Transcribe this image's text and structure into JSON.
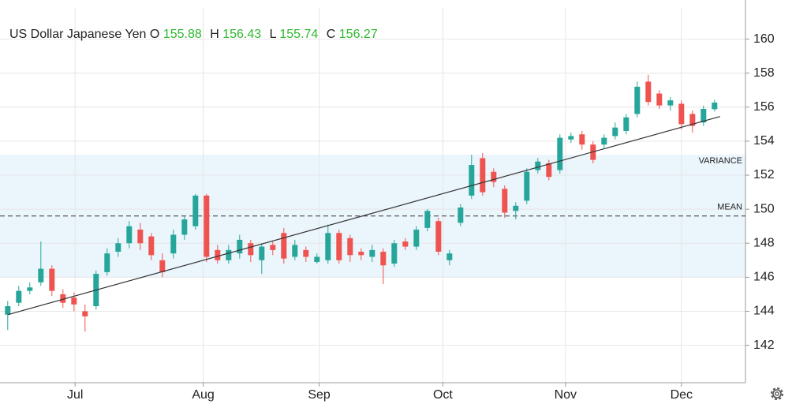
{
  "chart_data": {
    "type": "candlestick",
    "title": "US Dollar Japanese Yen",
    "ohlc_legend": [
      {
        "label": "O",
        "value": 155.88
      },
      {
        "label": "H",
        "value": 156.43
      },
      {
        "label": "L",
        "value": 155.74
      },
      {
        "label": "C",
        "value": 156.27
      }
    ],
    "x": [
      0,
      1,
      2,
      3,
      4,
      5,
      6,
      7,
      8,
      9,
      10,
      11,
      12,
      13,
      14,
      15,
      16,
      17,
      18,
      19,
      20,
      21,
      22,
      23,
      24,
      25,
      26,
      27,
      28,
      29,
      30,
      31,
      32,
      33,
      34,
      35,
      36,
      37,
      38,
      39,
      40,
      41,
      42,
      43,
      44,
      45,
      46,
      47,
      48,
      49,
      50,
      51,
      52,
      53,
      54,
      55,
      56,
      57,
      58,
      59,
      60,
      61,
      62,
      63,
      64
    ],
    "open": [
      143.8,
      144.5,
      145.2,
      145.7,
      146.5,
      145.0,
      144.8,
      144.0,
      144.3,
      146.3,
      147.5,
      148.0,
      148.8,
      148.4,
      147.0,
      147.4,
      148.5,
      149.0,
      150.8,
      147.6,
      147.0,
      147.4,
      148.0,
      147.0,
      147.9,
      148.6,
      147.2,
      147.6,
      146.9,
      147.0,
      148.6,
      148.3,
      147.5,
      147.2,
      147.5,
      146.8,
      148.1,
      147.8,
      148.9,
      149.3,
      147.0,
      149.2,
      150.8,
      153.0,
      152.2,
      151.2,
      149.9,
      150.5,
      152.3,
      152.7,
      152.3,
      154.1,
      154.4,
      153.8,
      153.8,
      154.3,
      154.6,
      155.6,
      157.5,
      156.8,
      156.1,
      156.2,
      155.6,
      155.1,
      155.88
    ],
    "high": [
      144.6,
      145.5,
      145.7,
      148.1,
      146.7,
      145.3,
      145.1,
      144.4,
      146.4,
      147.7,
      148.3,
      149.3,
      149.2,
      148.6,
      147.4,
      148.8,
      149.6,
      150.9,
      150.9,
      147.9,
      147.9,
      148.5,
      148.2,
      148.0,
      148.1,
      148.9,
      148.2,
      147.8,
      147.4,
      149.1,
      148.8,
      148.5,
      147.7,
      147.9,
      147.7,
      148.2,
      148.3,
      149.0,
      150.0,
      149.5,
      147.6,
      150.3,
      153.2,
      153.3,
      152.4,
      151.4,
      150.4,
      152.4,
      153.0,
      152.9,
      154.4,
      154.5,
      154.6,
      154.0,
      154.4,
      155.1,
      155.6,
      157.5,
      157.9,
      157.0,
      156.6,
      156.4,
      155.8,
      156.1,
      156.43
    ],
    "low": [
      142.9,
      144.3,
      145.0,
      145.5,
      144.9,
      144.2,
      144.0,
      142.8,
      144.1,
      146.1,
      147.2,
      147.7,
      147.6,
      147.0,
      146.0,
      147.1,
      148.2,
      148.8,
      146.9,
      146.8,
      146.8,
      147.1,
      146.9,
      146.2,
      147.3,
      146.8,
      147.0,
      146.9,
      146.8,
      146.8,
      146.8,
      146.9,
      147.0,
      146.9,
      145.6,
      146.6,
      147.6,
      147.6,
      148.7,
      147.3,
      146.7,
      149.0,
      150.6,
      150.8,
      151.3,
      149.5,
      149.4,
      150.3,
      152.1,
      151.7,
      152.1,
      153.9,
      153.5,
      152.7,
      153.6,
      154.1,
      154.4,
      155.4,
      156.1,
      155.9,
      155.8,
      154.7,
      154.5,
      154.9,
      155.74
    ],
    "close": [
      144.3,
      145.2,
      145.4,
      146.5,
      145.2,
      144.5,
      144.4,
      143.7,
      146.2,
      147.4,
      148.0,
      149.0,
      148.0,
      147.3,
      146.3,
      148.5,
      149.4,
      150.8,
      147.2,
      147.0,
      147.6,
      148.2,
      147.3,
      147.8,
      147.6,
      147.1,
      147.9,
      147.2,
      147.2,
      148.6,
      147.0,
      147.3,
      147.3,
      147.6,
      146.7,
      148.0,
      147.8,
      148.8,
      149.9,
      147.5,
      147.4,
      150.1,
      152.6,
      151.0,
      151.6,
      149.8,
      150.2,
      152.2,
      152.8,
      151.9,
      154.2,
      154.3,
      153.8,
      152.9,
      154.2,
      154.8,
      155.4,
      157.2,
      156.3,
      156.1,
      156.4,
      155.0,
      154.9,
      155.9,
      156.27
    ],
    "up_color": "#26a69a",
    "down_color": "#ef5350",
    "xlim": [
      -0.7,
      66.8
    ],
    "xticks": [
      {
        "value": 6.1,
        "label": "Jul"
      },
      {
        "value": 17.7,
        "label": "Aug"
      },
      {
        "value": 28.2,
        "label": "Sep"
      },
      {
        "value": 39.4,
        "label": "Oct"
      },
      {
        "value": 50.5,
        "label": "Nov"
      },
      {
        "value": 61.0,
        "label": "Dec"
      }
    ],
    "ylim": [
      139.8,
      162.3
    ],
    "yticks": [
      142,
      144,
      146,
      148,
      150,
      152,
      154,
      156,
      158,
      160
    ],
    "grid": true,
    "band": {
      "label": "VARIANCE",
      "from": 146.0,
      "to": 153.2
    },
    "mean_line": {
      "label": "MEAN",
      "value": 149.6
    },
    "trend_line": {
      "x": [
        0,
        64.5
      ],
      "y": [
        143.8,
        155.45
      ]
    }
  }
}
